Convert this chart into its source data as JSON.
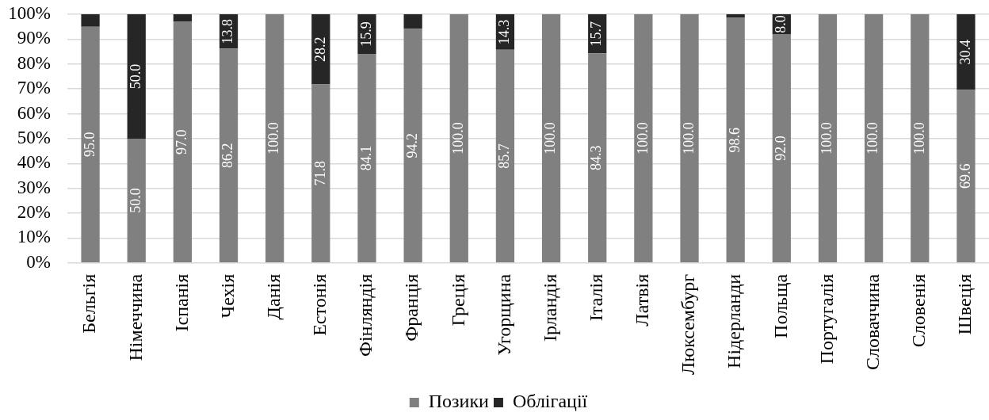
{
  "chart_data": {
    "type": "bar",
    "stacked": true,
    "categories": [
      "Бельгія",
      "Німеччина",
      "Іспанія",
      "Чехія",
      "Данія",
      "Естонія",
      "Фінляндія",
      "Франція",
      "Греція",
      "Угорщина",
      "Ірландія",
      "Італія",
      "Латвія",
      "Люксембург",
      "Нідерланди",
      "Польща",
      "Португалія",
      "Словаччина",
      "Словенія",
      "Швеція"
    ],
    "series": [
      {
        "name": "Позики",
        "color": "#808080",
        "values": [
          95.0,
          50.0,
          97.0,
          86.2,
          100.0,
          71.8,
          84.1,
          94.2,
          100.0,
          85.7,
          100.0,
          84.3,
          100.0,
          100.0,
          98.6,
          92.0,
          100.0,
          100.0,
          100.0,
          69.6
        ],
        "value_labels": [
          "95.0",
          "50.0",
          "97.0",
          "86.2",
          "100.0",
          "71.8",
          "84.1",
          "94.2",
          "100.0",
          "85.7",
          "100.0",
          "84.3",
          "100.0",
          "100.0",
          "98.6",
          "92.0",
          "100.0",
          "100.0",
          "100.0",
          "69.6"
        ]
      },
      {
        "name": "Облігації",
        "color": "#262626",
        "values": [
          5.0,
          50.0,
          3.0,
          13.8,
          0,
          28.2,
          15.9,
          5.8,
          0,
          14.3,
          0,
          15.7,
          0,
          0,
          1.4,
          8.0,
          0,
          0,
          0,
          30.4
        ],
        "value_labels": [
          null,
          "50.0",
          null,
          "13.8",
          null,
          "28.2",
          "15.9",
          null,
          null,
          "14.3",
          null,
          "15.7",
          null,
          null,
          null,
          "8.0",
          null,
          null,
          null,
          "30.4"
        ]
      }
    ],
    "ylim": [
      0,
      100
    ],
    "yticks": [
      {
        "value": 0,
        "label": "0%"
      },
      {
        "value": 10,
        "label": "10%"
      },
      {
        "value": 20,
        "label": "20%"
      },
      {
        "value": 30,
        "label": "30%"
      },
      {
        "value": 40,
        "label": "40%"
      },
      {
        "value": 50,
        "label": "50%"
      },
      {
        "value": 60,
        "label": "60%"
      },
      {
        "value": 70,
        "label": "70%"
      },
      {
        "value": 80,
        "label": "80%"
      },
      {
        "value": 90,
        "label": "90%"
      },
      {
        "value": 100,
        "label": "100%"
      }
    ],
    "grid": "y",
    "legend": "bottom"
  }
}
